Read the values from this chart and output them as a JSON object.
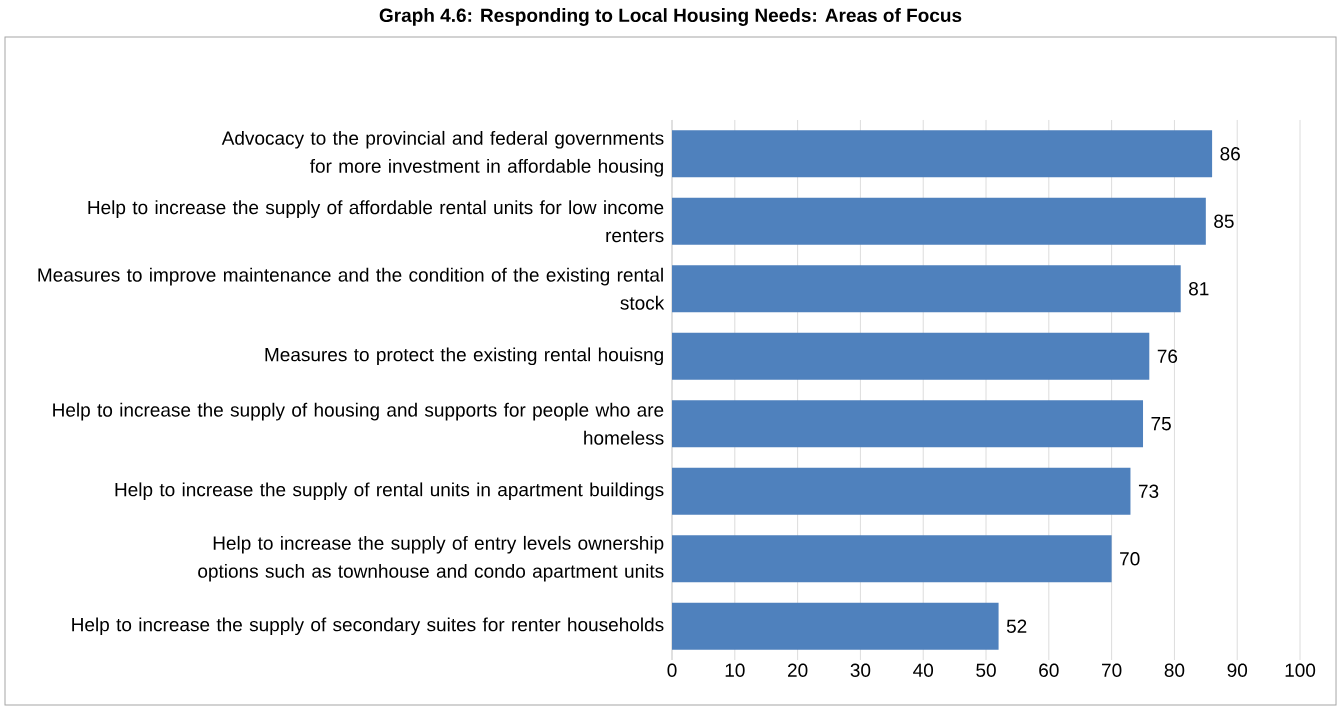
{
  "chart_data": {
    "type": "bar",
    "orientation": "horizontal",
    "title": "Graph 4.6: Responding to Local Housing Needs: Areas of Focus",
    "categories": [
      "Advocacy to the provincial and federal governments for more investment in affordable housing",
      "Help to increase the supply of affordable rental units for low income renters",
      "Measures to improve maintenance and the condition of the existing rental stock",
      "Measures to protect the existing rental houisng",
      "Help to increase the supply of housing and supports for people who are homeless",
      "Help to increase the supply of rental units in apartment buildings",
      "Help to increase the supply of entry levels ownership options such as townhouse and condo apartment units",
      "Help to increase the supply of secondary suites for renter households"
    ],
    "values": [
      86,
      85,
      81,
      76,
      75,
      73,
      70,
      52
    ],
    "color": "#4f81bd",
    "xlim": [
      0,
      100
    ],
    "xticks": [
      0,
      10,
      20,
      30,
      40,
      50,
      60,
      70,
      80,
      90,
      100
    ],
    "grid": "x",
    "data_labels": true
  }
}
